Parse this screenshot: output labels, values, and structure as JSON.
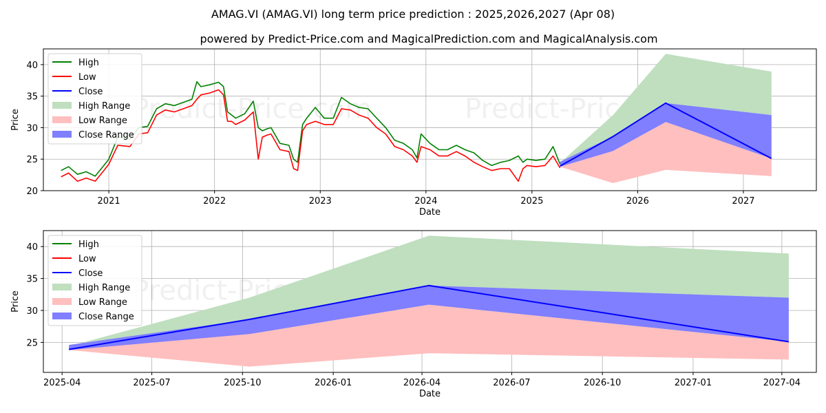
{
  "title": "AMAG.VI (AMAG.VI) long term price prediction : 2025,2026,2027 (Apr 08)",
  "subtitle": "powered by Predict-Price.com and MagicalPrediction.com and MagicalAnalysis.com",
  "watermark": "Predict-Price.com",
  "legend": [
    "High",
    "Low",
    "Close",
    "High Range",
    "Low Range",
    "Close Range"
  ],
  "colors": {
    "high": "#008000",
    "low": "#ff0000",
    "close": "#0000ff",
    "high_range": "#bfdfbf",
    "low_range": "#ffbfbf",
    "close_range": "#7f7fff"
  },
  "chart_data": [
    {
      "type": "line",
      "xlabel": "Date",
      "ylabel": "Price",
      "xlim": [
        "2020-05-20",
        "2027-09-10"
      ],
      "ylim": [
        20,
        42.5
      ],
      "yticks": [
        20,
        25,
        30,
        35,
        40
      ],
      "xticks": [
        "2021",
        "2022",
        "2023",
        "2024",
        "2025",
        "2026",
        "2027"
      ],
      "grid": true,
      "legend_position": "upper-left",
      "history": {
        "dates": [
          "2020-07-20",
          "2020-08-15",
          "2020-09-15",
          "2020-10-15",
          "2020-11-15",
          "2020-12-15",
          "2021-01-01",
          "2021-02-01",
          "2021-03-15",
          "2021-04-15",
          "2021-05-15",
          "2021-06-15",
          "2021-07-15",
          "2021-08-15",
          "2021-09-15",
          "2021-10-15",
          "2021-11-01",
          "2021-11-15",
          "2021-12-15",
          "2022-01-15",
          "2022-02-01",
          "2022-02-15",
          "2022-03-01",
          "2022-03-15",
          "2022-04-15",
          "2022-05-15",
          "2022-06-01",
          "2022-06-15",
          "2022-07-01",
          "2022-07-15",
          "2022-08-15",
          "2022-09-15",
          "2022-10-01",
          "2022-10-15",
          "2022-11-01",
          "2022-11-15",
          "2022-12-15",
          "2023-01-15",
          "2023-02-15",
          "2023-03-15",
          "2023-04-15",
          "2023-05-15",
          "2023-06-15",
          "2023-07-15",
          "2023-08-15",
          "2023-09-15",
          "2023-10-15",
          "2023-11-15",
          "2023-12-01",
          "2023-12-15",
          "2024-01-15",
          "2024-02-15",
          "2024-03-15",
          "2024-04-15",
          "2024-05-15",
          "2024-06-15",
          "2024-07-15",
          "2024-08-15",
          "2024-09-15",
          "2024-10-15",
          "2024-11-15",
          "2024-12-01",
          "2024-12-15",
          "2025-01-15",
          "2025-02-15",
          "2025-03-15",
          "2025-04-08"
        ],
        "high": [
          23.2,
          23.8,
          22.6,
          23.0,
          22.3,
          24.0,
          25.0,
          28.5,
          28.2,
          30.0,
          30.2,
          33.0,
          33.8,
          33.5,
          34.0,
          34.5,
          37.3,
          36.5,
          36.8,
          37.2,
          36.5,
          32.5,
          32.0,
          31.5,
          32.2,
          34.2,
          30.0,
          29.5,
          29.8,
          30.0,
          27.5,
          27.2,
          25.0,
          24.5,
          30.5,
          31.5,
          33.2,
          31.5,
          31.5,
          34.8,
          33.8,
          33.2,
          33.0,
          31.5,
          30.0,
          28.0,
          27.5,
          26.5,
          25.2,
          29.0,
          27.5,
          26.5,
          26.5,
          27.2,
          26.5,
          26.0,
          24.8,
          24.0,
          24.5,
          24.8,
          25.5,
          24.5,
          25.0,
          24.8,
          25.0,
          27.0,
          24.2
        ],
        "low": [
          22.2,
          22.8,
          21.5,
          22.0,
          21.5,
          23.2,
          24.2,
          27.2,
          27.0,
          29.0,
          29.2,
          32.0,
          32.8,
          32.5,
          33.0,
          33.5,
          34.5,
          35.2,
          35.5,
          36.0,
          35.2,
          31.0,
          31.0,
          30.5,
          31.2,
          32.5,
          25.0,
          28.5,
          28.8,
          29.0,
          26.5,
          26.2,
          23.5,
          23.2,
          29.5,
          30.5,
          31.0,
          30.5,
          30.5,
          33.0,
          32.8,
          32.0,
          31.5,
          30.0,
          29.0,
          27.0,
          26.5,
          25.5,
          24.5,
          27.0,
          26.5,
          25.5,
          25.5,
          26.2,
          25.5,
          24.5,
          23.8,
          23.2,
          23.5,
          23.5,
          21.5,
          23.5,
          24.0,
          23.8,
          24.0,
          25.5,
          23.6
        ]
      }
    },
    {
      "type": "area",
      "xlabel": "Date",
      "ylabel": "Price",
      "xlim": [
        "2025-03-13",
        "2027-05-06"
      ],
      "ylim": [
        20.3,
        42.5
      ],
      "yticks": [
        25,
        30,
        35,
        40
      ],
      "xticks": [
        "2025-04",
        "2025-07",
        "2025-10",
        "2026-01",
        "2026-04",
        "2026-07",
        "2026-10",
        "2027-01",
        "2027-04"
      ],
      "grid": true,
      "legend_position": "upper-left",
      "x": [
        "2025-04-08",
        "2025-10-08",
        "2026-04-08",
        "2027-04-08"
      ],
      "close": [
        23.9,
        28.6,
        33.9,
        25.1
      ],
      "high_range": {
        "upper": [
          24.4,
          32.0,
          41.7,
          38.9
        ],
        "lower": [
          23.8,
          23.5,
          33.9,
          32.0
        ]
      },
      "low_range": {
        "upper": [
          24.4,
          26.3,
          30.9,
          25.1
        ],
        "lower": [
          23.8,
          21.2,
          23.3,
          22.3
        ]
      },
      "close_range": {
        "upper": [
          24.6,
          28.6,
          33.9,
          32.0
        ],
        "lower": [
          23.8,
          26.3,
          30.9,
          25.1
        ]
      }
    }
  ]
}
